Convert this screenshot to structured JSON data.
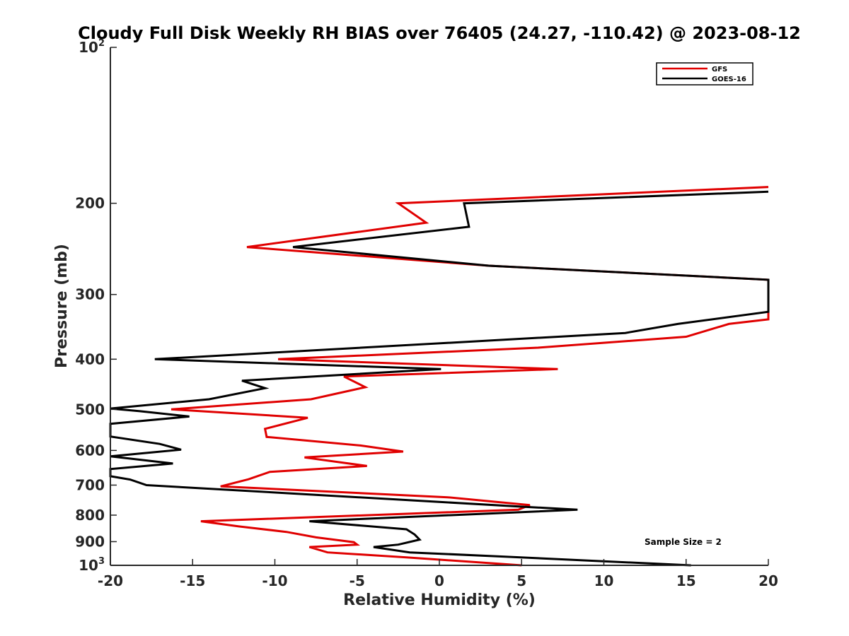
{
  "chart_data": {
    "type": "line",
    "title": "Cloudy Full Disk Weekly RH BIAS over 76405 (24.27, -110.42) @ 2023-08-12",
    "xlabel": "Relative Humidity (%)",
    "ylabel": "Pressure (mb)",
    "xlim": [
      -20,
      20
    ],
    "ylim": [
      100,
      1000
    ],
    "yscale": "log",
    "y_reversed": true,
    "x_ticks": [
      "-20",
      "-15",
      "-10",
      "-5",
      "0",
      "5",
      "10",
      "15",
      "20"
    ],
    "y_ticks": [
      {
        "value": 100,
        "base": "10",
        "exp": "2"
      },
      {
        "value": 200,
        "label": "200"
      },
      {
        "value": 300,
        "label": "300"
      },
      {
        "value": 400,
        "label": "400"
      },
      {
        "value": 500,
        "label": "500"
      },
      {
        "value": 600,
        "label": "600"
      },
      {
        "value": 700,
        "label": "700"
      },
      {
        "value": 800,
        "label": "800"
      },
      {
        "value": 900,
        "label": "900"
      },
      {
        "value": 1000,
        "base": "10",
        "exp": "3"
      }
    ],
    "legend_position": "top-right",
    "annotation": "Sample Size = 2",
    "series": [
      {
        "name": "GFS",
        "color": "#e00000",
        "points": [
          [
            20.0,
            186
          ],
          [
            -2.5,
            200
          ],
          [
            -0.8,
            218
          ],
          [
            -11.7,
            243
          ],
          [
            3.0,
            264
          ],
          [
            20.0,
            281
          ],
          [
            20.0,
            335
          ],
          [
            17.6,
            342
          ],
          [
            15.0,
            362
          ],
          [
            6.0,
            380
          ],
          [
            -9.8,
            400
          ],
          [
            7.2,
            418
          ],
          [
            -5.8,
            432
          ],
          [
            -4.5,
            453
          ],
          [
            -7.8,
            478
          ],
          [
            -16.3,
            500
          ],
          [
            -8.0,
            519
          ],
          [
            -10.6,
            545
          ],
          [
            -10.5,
            565
          ],
          [
            -4.8,
            587
          ],
          [
            -2.2,
            603
          ],
          [
            -8.2,
            619
          ],
          [
            -4.4,
            643
          ],
          [
            -10.3,
            660
          ],
          [
            -11.6,
            682
          ],
          [
            -13.3,
            704
          ],
          [
            0.5,
            739
          ],
          [
            5.5,
            765
          ],
          [
            4.8,
            781
          ],
          [
            -14.5,
            822
          ],
          [
            -12.2,
            841
          ],
          [
            -9.3,
            862
          ],
          [
            -7.5,
            883
          ],
          [
            -5.2,
            902
          ],
          [
            -5.0,
            912
          ],
          [
            -7.9,
            922
          ],
          [
            -6.8,
            944
          ],
          [
            -2.0,
            965
          ],
          [
            5.0,
            1000
          ]
        ]
      },
      {
        "name": "GOES-16",
        "color": "#000000",
        "points": [
          [
            20.0,
            190
          ],
          [
            1.5,
            200
          ],
          [
            1.8,
            222
          ],
          [
            -8.9,
            243
          ],
          [
            3.0,
            264
          ],
          [
            20.0,
            281
          ],
          [
            20.0,
            324
          ],
          [
            14.5,
            342
          ],
          [
            11.3,
            356
          ],
          [
            -17.3,
            400
          ],
          [
            0.1,
            418
          ],
          [
            -12.0,
            440
          ],
          [
            -10.6,
            455
          ],
          [
            -14.0,
            478
          ],
          [
            -20.0,
            498
          ],
          [
            -18.2,
            504
          ],
          [
            -15.2,
            516
          ],
          [
            -20.0,
            533
          ],
          [
            -20.0,
            564
          ],
          [
            -17.0,
            583
          ],
          [
            -15.7,
            598
          ],
          [
            -20.0,
            616
          ],
          [
            -16.2,
            636
          ],
          [
            -20.0,
            652
          ],
          [
            -20.0,
            673
          ],
          [
            -18.8,
            683
          ],
          [
            -17.8,
            700
          ],
          [
            5.2,
            771
          ],
          [
            8.4,
            781
          ],
          [
            -7.9,
            822
          ],
          [
            -2.0,
            852
          ],
          [
            -1.5,
            872
          ],
          [
            -1.2,
            892
          ],
          [
            -2.5,
            912
          ],
          [
            -4.0,
            922
          ],
          [
            -1.8,
            944
          ],
          [
            4.0,
            962
          ],
          [
            15.3,
            1000
          ]
        ]
      }
    ]
  }
}
